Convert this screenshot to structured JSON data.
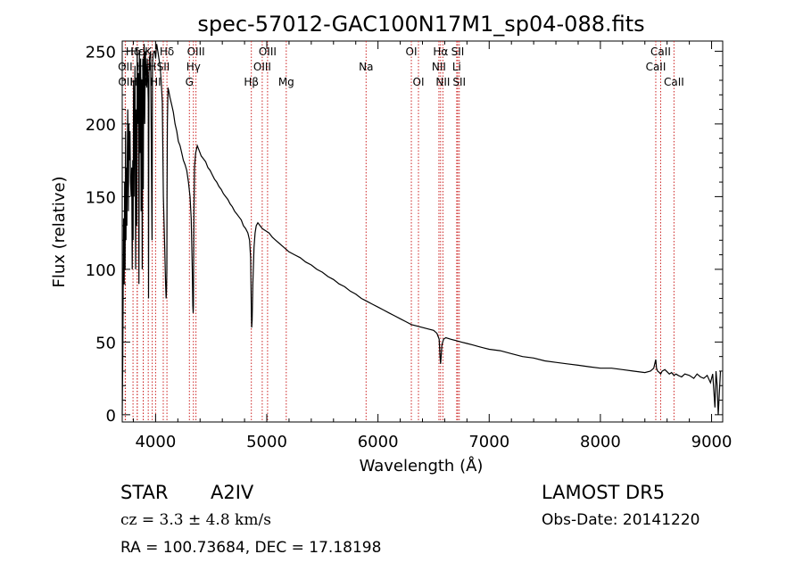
{
  "chart_data": {
    "type": "line",
    "title": "spec-57012-GAC100N17M1_sp04-088.fits",
    "xlabel": "Wavelength (Å)",
    "ylabel": "Flux (relative)",
    "xlim": [
      3700,
      9100
    ],
    "ylim": [
      -5,
      257
    ],
    "xticks": [
      4000,
      5000,
      6000,
      7000,
      8000,
      9000
    ],
    "yticks": [
      0,
      50,
      100,
      150,
      200,
      250
    ],
    "grid": false,
    "series": [
      {
        "x": [
          3700,
          3705,
          3712,
          3718,
          3722,
          3726,
          3730,
          3734,
          3738,
          3742,
          3746,
          3750,
          3755,
          3760,
          3765,
          3770,
          3775,
          3780,
          3785,
          3790,
          3795,
          3798,
          3802,
          3806,
          3810,
          3815,
          3820,
          3826,
          3830,
          3835,
          3840,
          3845,
          3850,
          3855,
          3860,
          3865,
          3870,
          3875,
          3880,
          3885,
          3889,
          3893,
          3897,
          3902,
          3908,
          3915,
          3920,
          3925,
          3930,
          3934,
          3937,
          3940,
          3945,
          3955,
          3964,
          3968,
          3972,
          3978,
          3985,
          3992,
          4000,
          4010,
          4020,
          4030,
          4040,
          4050,
          4060,
          4070,
          4080,
          4090,
          4095,
          4098,
          4101,
          4103,
          4106,
          4112,
          4120,
          4130,
          4145,
          4160,
          4175,
          4190,
          4205,
          4220,
          4235,
          4250,
          4265,
          4280,
          4295,
          4310,
          4320,
          4330,
          4335,
          4338,
          4340,
          4342,
          4345,
          4350,
          4360,
          4375,
          4390,
          4410,
          4430,
          4450,
          4470,
          4490,
          4510,
          4530,
          4550,
          4570,
          4590,
          4610,
          4630,
          4650,
          4670,
          4690,
          4710,
          4730,
          4750,
          4770,
          4790,
          4810,
          4830,
          4845,
          4855,
          4858,
          4861,
          4864,
          4868,
          4875,
          4885,
          4895,
          4905,
          4920,
          4940,
          4960,
          4980,
          5000,
          5020,
          5050,
          5080,
          5110,
          5140,
          5170,
          5200,
          5250,
          5300,
          5350,
          5400,
          5450,
          5500,
          5550,
          5600,
          5650,
          5700,
          5750,
          5800,
          5850,
          5900,
          5950,
          6000,
          6050,
          6100,
          6150,
          6200,
          6250,
          6300,
          6350,
          6400,
          6450,
          6500,
          6530,
          6550,
          6558,
          6563,
          6568,
          6575,
          6590,
          6610,
          6650,
          6700,
          6750,
          6800,
          6850,
          6900,
          6950,
          7000,
          7100,
          7200,
          7300,
          7400,
          7500,
          7600,
          7700,
          7800,
          7900,
          8000,
          8100,
          8200,
          8300,
          8400,
          8450,
          8480,
          8498,
          8505,
          8515,
          8530,
          8542,
          8555,
          8580,
          8620,
          8640,
          8662,
          8680,
          8700,
          8730,
          8760,
          8800,
          8840,
          8870,
          8900,
          8930,
          8960,
          8990,
          9010,
          9030,
          9040,
          9050,
          9060,
          9080
        ],
        "y": [
          0,
          38,
          135,
          90,
          160,
          100,
          195,
          120,
          170,
          130,
          180,
          210,
          140,
          200,
          175,
          195,
          160,
          150,
          170,
          100,
          175,
          120,
          230,
          150,
          200,
          240,
          100,
          210,
          130,
          250,
          200,
          235,
          90,
          250,
          180,
          245,
          140,
          230,
          100,
          245,
          155,
          240,
          255,
          200,
          250,
          235,
          225,
          245,
          230,
          215,
          80,
          235,
          245,
          250,
          160,
          120,
          240,
          248,
          250,
          250,
          245,
          255,
          250,
          245,
          240,
          230,
          215,
          150,
          120,
          90,
          80,
          85,
          100,
          150,
          200,
          225,
          222,
          218,
          213,
          208,
          200,
          195,
          188,
          185,
          180,
          175,
          172,
          168,
          160,
          150,
          135,
          100,
          75,
          70,
          75,
          100,
          140,
          170,
          180,
          185,
          182,
          178,
          176,
          174,
          170,
          168,
          165,
          162,
          160,
          157,
          155,
          152,
          150,
          148,
          145,
          143,
          140,
          138,
          136,
          134,
          130,
          128,
          125,
          120,
          108,
          90,
          70,
          60,
          65,
          90,
          115,
          125,
          130,
          132,
          130,
          128,
          127,
          126,
          125,
          122,
          120,
          118,
          116,
          114,
          112,
          110,
          108,
          105,
          103,
          100,
          98,
          95,
          93,
          90,
          88,
          85,
          83,
          80,
          78,
          76,
          74,
          72,
          70,
          68,
          66,
          64,
          62,
          61,
          60,
          59,
          58,
          56,
          52,
          40,
          35,
          40,
          48,
          52,
          53,
          52,
          51,
          50,
          49,
          48,
          47,
          46,
          45,
          44,
          42,
          40,
          39,
          37,
          36,
          35,
          34,
          33,
          32,
          32,
          31,
          30,
          29,
          30,
          32,
          38,
          32,
          30,
          29,
          28,
          30,
          31,
          28,
          29,
          27,
          28,
          27,
          26,
          28,
          27,
          25,
          28,
          26,
          25,
          27,
          22,
          28,
          5,
          30,
          20,
          0,
          30
        ]
      }
    ],
    "line_ids": [
      {
        "label": "Hδ",
        "x": 3797,
        "row": 1
      },
      {
        "label": "OII",
        "x": 3727,
        "row": 2
      },
      {
        "label": "OII",
        "x": 3729,
        "row": 3
      },
      {
        "label": "Hε",
        "x": 3835,
        "row": 1
      },
      {
        "label": "Hη",
        "x": 3835,
        "row": 3
      },
      {
        "label": "Hε",
        "x": 3889,
        "row": 2
      },
      {
        "label": "K",
        "x": 3934,
        "row": 1
      },
      {
        "label": "H",
        "x": 3970,
        "row": 2
      },
      {
        "label": "H",
        "x": 3889,
        "row": 3
      },
      {
        "label": "Hδ",
        "x": 4102,
        "row": 1
      },
      {
        "label": "SII",
        "x": 4069,
        "row": 2
      },
      {
        "label": "HI",
        "x": 4000,
        "row": 3
      },
      {
        "label": "OIII",
        "x": 4363,
        "row": 1
      },
      {
        "label": "Hγ",
        "x": 4340,
        "row": 2
      },
      {
        "label": "G",
        "x": 4304,
        "row": 3
      },
      {
        "label": "Hβ",
        "x": 4861,
        "row": 3
      },
      {
        "label": "OIII",
        "x": 5007,
        "row": 1
      },
      {
        "label": "OIII",
        "x": 4959,
        "row": 2
      },
      {
        "label": "Mg",
        "x": 5175,
        "row": 3
      },
      {
        "label": "Na",
        "x": 5893,
        "row": 2
      },
      {
        "label": "OI",
        "x": 6300,
        "row": 1
      },
      {
        "label": "OI",
        "x": 6364,
        "row": 3
      },
      {
        "label": "Hα",
        "x": 6563,
        "row": 1
      },
      {
        "label": "NII",
        "x": 6548,
        "row": 2
      },
      {
        "label": "NII",
        "x": 6584,
        "row": 3
      },
      {
        "label": "SII",
        "x": 6717,
        "row": 1
      },
      {
        "label": "Li",
        "x": 6708,
        "row": 2
      },
      {
        "label": "SII",
        "x": 6731,
        "row": 3
      },
      {
        "label": "CaII",
        "x": 8542,
        "row": 1
      },
      {
        "label": "CaII",
        "x": 8498,
        "row": 2
      },
      {
        "label": "CaII",
        "x": 8662,
        "row": 3
      }
    ]
  },
  "info": {
    "class": "STAR",
    "subclass": "A2IV",
    "survey": "LAMOST  DR5",
    "cz": "cz = 3.3 ± 4.8 km/s",
    "obsdate": "Obs-Date: 20141220",
    "radec": "RA = 100.73684, DEC =  17.18198"
  }
}
